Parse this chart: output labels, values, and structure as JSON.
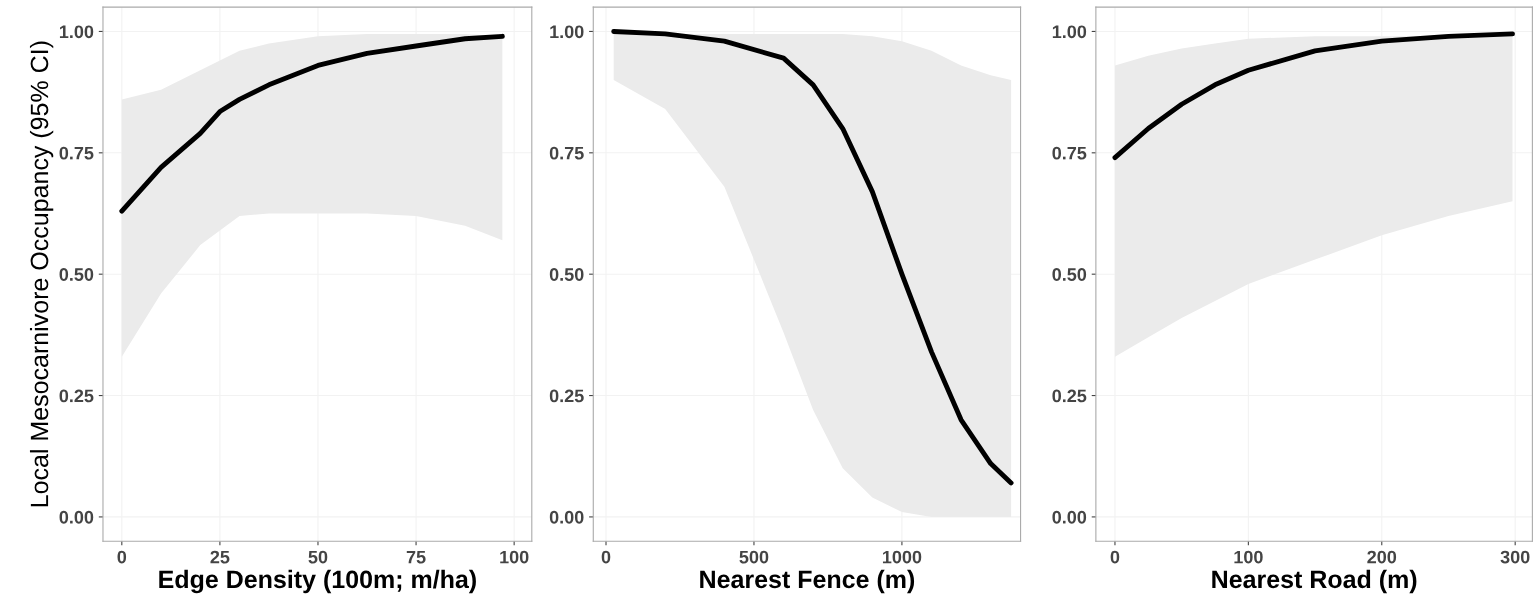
{
  "chart_data": [
    {
      "type": "line",
      "ylabel": "Local Mesocarnivore Occupancy (95% CI)",
      "xlabel": "Edge Density (100m; m/ha)",
      "xlim": [
        -4.8,
        104.5
      ],
      "xticks": [
        0,
        25,
        50,
        75,
        100
      ],
      "ylim": [
        -0.05,
        1.05
      ],
      "yticks": [
        {
          "value": 0,
          "label": "0.00"
        },
        {
          "value": 0.25,
          "label": "0.25"
        },
        {
          "value": 0.5,
          "label": "0.50"
        },
        {
          "value": 0.75,
          "label": "0.75"
        },
        {
          "value": 1,
          "label": "1.00"
        }
      ],
      "grid": true,
      "series": [
        {
          "color": "#000000",
          "x": [
            0,
            10,
            20,
            25,
            30,
            37.5,
            50,
            62.5,
            75,
            87.5,
            97
          ],
          "values": [
            0.63,
            0.72,
            0.79,
            0.835,
            0.86,
            0.89,
            0.93,
            0.955,
            0.97,
            0.985,
            0.99
          ],
          "lower": [
            0.33,
            0.46,
            0.56,
            0.59,
            0.62,
            0.625,
            0.625,
            0.625,
            0.62,
            0.6,
            0.57
          ],
          "upper": [
            0.86,
            0.88,
            0.92,
            0.94,
            0.96,
            0.975,
            0.99,
            0.995,
            0.995,
            0.995,
            0.99
          ]
        }
      ]
    },
    {
      "type": "line",
      "xlabel": "Nearest Fence (m)",
      "xlim": [
        -43,
        1401
      ],
      "xticks": [
        0,
        500,
        1000
      ],
      "ylim": [
        -0.05,
        1.05
      ],
      "yticks": [
        {
          "value": 0,
          "label": "0.00"
        },
        {
          "value": 0.25,
          "label": "0.25"
        },
        {
          "value": 0.5,
          "label": "0.50"
        },
        {
          "value": 0.75,
          "label": "0.75"
        },
        {
          "value": 1,
          "label": "1.00"
        }
      ],
      "grid": true,
      "series": [
        {
          "color": "#000000",
          "x": [
            26,
            200,
            400,
            600,
            700,
            800,
            900,
            1000,
            1100,
            1200,
            1300,
            1369
          ],
          "values": [
            1.0,
            0.995,
            0.98,
            0.945,
            0.89,
            0.8,
            0.67,
            0.5,
            0.34,
            0.2,
            0.11,
            0.07
          ],
          "lower": [
            0.9,
            0.84,
            0.68,
            0.38,
            0.22,
            0.1,
            0.04,
            0.01,
            0.0,
            0.0,
            0.0,
            0.0
          ],
          "upper": [
            1.0,
            0.995,
            0.995,
            0.995,
            0.995,
            0.995,
            0.99,
            0.98,
            0.96,
            0.93,
            0.91,
            0.9
          ]
        }
      ]
    },
    {
      "type": "line",
      "xlabel": "Nearest Road (m)",
      "xlim": [
        -14.3,
        312.9
      ],
      "xticks": [
        0,
        100,
        200,
        300
      ],
      "ylim": [
        -0.05,
        1.05
      ],
      "yticks": [
        {
          "value": 0,
          "label": "0.00"
        },
        {
          "value": 0.25,
          "label": "0.25"
        },
        {
          "value": 0.5,
          "label": "0.50"
        },
        {
          "value": 0.75,
          "label": "0.75"
        },
        {
          "value": 1,
          "label": "1.00"
        }
      ],
      "grid": true,
      "series": [
        {
          "color": "#000000",
          "x": [
            0,
            25,
            50,
            75,
            100,
            150,
            200,
            250,
            298
          ],
          "values": [
            0.74,
            0.8,
            0.85,
            0.89,
            0.92,
            0.96,
            0.98,
            0.99,
            0.995
          ],
          "lower": [
            0.33,
            0.37,
            0.41,
            0.445,
            0.48,
            0.53,
            0.58,
            0.62,
            0.65
          ],
          "upper": [
            0.93,
            0.95,
            0.965,
            0.975,
            0.985,
            0.99,
            0.99,
            0.99,
            0.99
          ]
        }
      ]
    }
  ]
}
